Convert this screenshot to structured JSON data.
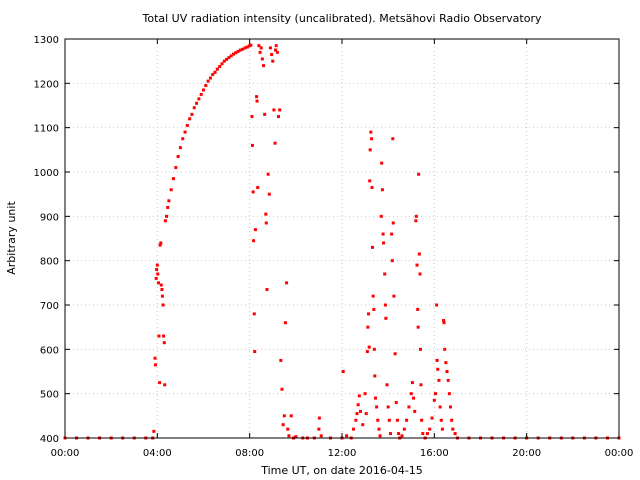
{
  "chart_data": {
    "type": "scatter",
    "title": "Total UV radiation intensity (uncalibrated). Metsähovi Radio Observatory",
    "xlabel": "Time UT, on date 2016-04-15",
    "ylabel": "Arbitrary unit",
    "xlim": [
      0,
      24
    ],
    "ylim": [
      400,
      1300
    ],
    "x_ticks": [
      0,
      4,
      8,
      12,
      16,
      20,
      24
    ],
    "x_tick_labels": [
      "00:00",
      "04:00",
      "08:00",
      "12:00",
      "16:00",
      "20:00",
      "00:00"
    ],
    "y_ticks": [
      400,
      500,
      600,
      700,
      800,
      900,
      1000,
      1100,
      1200,
      1300
    ],
    "y_tick_labels": [
      "400",
      "500",
      "600",
      "700",
      "800",
      "900",
      "1000",
      "1100",
      "1200",
      "1300"
    ],
    "grid": true,
    "legend": "none",
    "marker_color": "#ff0000",
    "x_unit": "hours UT",
    "series": [
      {
        "values_note": "",
        "points": [
          [
            0.0,
            400
          ],
          [
            0.5,
            400
          ],
          [
            1.0,
            400
          ],
          [
            1.5,
            400
          ],
          [
            2.0,
            400
          ],
          [
            2.5,
            400
          ],
          [
            3.0,
            400
          ],
          [
            3.5,
            400
          ],
          [
            3.8,
            400
          ],
          [
            3.85,
            415
          ],
          [
            3.9,
            580
          ],
          [
            3.92,
            565
          ],
          [
            3.95,
            760
          ],
          [
            3.97,
            780
          ],
          [
            4.0,
            790
          ],
          [
            4.02,
            770
          ],
          [
            4.05,
            750
          ],
          [
            4.07,
            630
          ],
          [
            4.1,
            525
          ],
          [
            4.12,
            835
          ],
          [
            4.15,
            840
          ],
          [
            4.17,
            745
          ],
          [
            4.2,
            735
          ],
          [
            4.22,
            720
          ],
          [
            4.25,
            700
          ],
          [
            4.27,
            630
          ],
          [
            4.3,
            615
          ],
          [
            4.32,
            520
          ],
          [
            4.35,
            890
          ],
          [
            4.4,
            900
          ],
          [
            4.45,
            920
          ],
          [
            4.5,
            935
          ],
          [
            4.6,
            960
          ],
          [
            4.7,
            985
          ],
          [
            4.8,
            1010
          ],
          [
            4.9,
            1035
          ],
          [
            5.0,
            1055
          ],
          [
            5.1,
            1075
          ],
          [
            5.2,
            1090
          ],
          [
            5.3,
            1105
          ],
          [
            5.4,
            1120
          ],
          [
            5.5,
            1130
          ],
          [
            5.6,
            1145
          ],
          [
            5.7,
            1155
          ],
          [
            5.8,
            1165
          ],
          [
            5.9,
            1175
          ],
          [
            6.0,
            1185
          ],
          [
            6.1,
            1195
          ],
          [
            6.2,
            1205
          ],
          [
            6.3,
            1212
          ],
          [
            6.4,
            1220
          ],
          [
            6.5,
            1225
          ],
          [
            6.6,
            1232
          ],
          [
            6.7,
            1238
          ],
          [
            6.8,
            1244
          ],
          [
            6.9,
            1250
          ],
          [
            7.0,
            1254
          ],
          [
            7.1,
            1258
          ],
          [
            7.2,
            1262
          ],
          [
            7.3,
            1266
          ],
          [
            7.4,
            1269
          ],
          [
            7.5,
            1272
          ],
          [
            7.6,
            1275
          ],
          [
            7.7,
            1277
          ],
          [
            7.8,
            1280
          ],
          [
            7.9,
            1282
          ],
          [
            8.0,
            1285
          ],
          [
            8.05,
            1286
          ],
          [
            8.1,
            1125
          ],
          [
            8.12,
            1060
          ],
          [
            8.15,
            955
          ],
          [
            8.17,
            845
          ],
          [
            8.2,
            680
          ],
          [
            8.22,
            595
          ],
          [
            8.25,
            870
          ],
          [
            8.3,
            1170
          ],
          [
            8.32,
            1160
          ],
          [
            8.35,
            965
          ],
          [
            8.4,
            1285
          ],
          [
            8.45,
            1270
          ],
          [
            8.5,
            1280
          ],
          [
            8.55,
            1255
          ],
          [
            8.6,
            1240
          ],
          [
            8.65,
            1130
          ],
          [
            8.7,
            905
          ],
          [
            8.72,
            885
          ],
          [
            8.75,
            735
          ],
          [
            8.8,
            995
          ],
          [
            8.85,
            950
          ],
          [
            8.9,
            1280
          ],
          [
            8.95,
            1265
          ],
          [
            9.0,
            1250
          ],
          [
            9.05,
            1140
          ],
          [
            9.1,
            1065
          ],
          [
            9.12,
            1275
          ],
          [
            9.15,
            1285
          ],
          [
            9.2,
            1270
          ],
          [
            9.25,
            1125
          ],
          [
            9.3,
            1140
          ],
          [
            9.35,
            575
          ],
          [
            9.4,
            510
          ],
          [
            9.45,
            430
          ],
          [
            9.5,
            450
          ],
          [
            9.55,
            660
          ],
          [
            9.6,
            750
          ],
          [
            9.65,
            420
          ],
          [
            9.7,
            405
          ],
          [
            9.8,
            450
          ],
          [
            9.9,
            400
          ],
          [
            10.0,
            403
          ],
          [
            10.3,
            400
          ],
          [
            10.5,
            400
          ],
          [
            10.8,
            400
          ],
          [
            11.0,
            420
          ],
          [
            11.02,
            445
          ],
          [
            11.1,
            405
          ],
          [
            11.5,
            400
          ],
          [
            12.0,
            400
          ],
          [
            12.05,
            550
          ],
          [
            12.2,
            405
          ],
          [
            12.4,
            400
          ],
          [
            12.5,
            420
          ],
          [
            12.6,
            440
          ],
          [
            12.65,
            455
          ],
          [
            12.7,
            475
          ],
          [
            12.75,
            495
          ],
          [
            12.8,
            460
          ],
          [
            12.9,
            430
          ],
          [
            13.0,
            500
          ],
          [
            13.05,
            455
          ],
          [
            13.1,
            595
          ],
          [
            13.12,
            650
          ],
          [
            13.15,
            680
          ],
          [
            13.18,
            605
          ],
          [
            13.2,
            980
          ],
          [
            13.22,
            1050
          ],
          [
            13.25,
            1090
          ],
          [
            13.28,
            1075
          ],
          [
            13.3,
            965
          ],
          [
            13.32,
            830
          ],
          [
            13.35,
            720
          ],
          [
            13.38,
            690
          ],
          [
            13.4,
            600
          ],
          [
            13.42,
            540
          ],
          [
            13.45,
            490
          ],
          [
            13.5,
            470
          ],
          [
            13.55,
            440
          ],
          [
            13.6,
            420
          ],
          [
            13.65,
            405
          ],
          [
            13.7,
            900
          ],
          [
            13.72,
            1020
          ],
          [
            13.75,
            960
          ],
          [
            13.78,
            860
          ],
          [
            13.8,
            840
          ],
          [
            13.85,
            770
          ],
          [
            13.88,
            700
          ],
          [
            13.9,
            670
          ],
          [
            13.95,
            520
          ],
          [
            14.0,
            470
          ],
          [
            14.05,
            440
          ],
          [
            14.1,
            410
          ],
          [
            14.15,
            860
          ],
          [
            14.18,
            800
          ],
          [
            14.2,
            1075
          ],
          [
            14.22,
            885
          ],
          [
            14.25,
            720
          ],
          [
            14.3,
            590
          ],
          [
            14.35,
            480
          ],
          [
            14.4,
            440
          ],
          [
            14.45,
            410
          ],
          [
            14.5,
            400
          ],
          [
            14.6,
            405
          ],
          [
            14.7,
            420
          ],
          [
            14.8,
            440
          ],
          [
            14.9,
            470
          ],
          [
            15.0,
            500
          ],
          [
            15.05,
            525
          ],
          [
            15.1,
            490
          ],
          [
            15.15,
            460
          ],
          [
            15.2,
            890
          ],
          [
            15.22,
            900
          ],
          [
            15.25,
            790
          ],
          [
            15.28,
            690
          ],
          [
            15.3,
            650
          ],
          [
            15.32,
            995
          ],
          [
            15.35,
            815
          ],
          [
            15.38,
            770
          ],
          [
            15.4,
            600
          ],
          [
            15.42,
            520
          ],
          [
            15.45,
            440
          ],
          [
            15.5,
            410
          ],
          [
            15.6,
            400
          ],
          [
            15.7,
            410
          ],
          [
            15.8,
            420
          ],
          [
            15.9,
            445
          ],
          [
            16.0,
            485
          ],
          [
            16.05,
            500
          ],
          [
            16.1,
            700
          ],
          [
            16.12,
            575
          ],
          [
            16.15,
            555
          ],
          [
            16.2,
            530
          ],
          [
            16.25,
            470
          ],
          [
            16.3,
            440
          ],
          [
            16.35,
            420
          ],
          [
            16.4,
            665
          ],
          [
            16.42,
            660
          ],
          [
            16.45,
            600
          ],
          [
            16.5,
            570
          ],
          [
            16.55,
            550
          ],
          [
            16.6,
            530
          ],
          [
            16.65,
            500
          ],
          [
            16.7,
            470
          ],
          [
            16.75,
            440
          ],
          [
            16.8,
            420
          ],
          [
            16.9,
            410
          ],
          [
            17.0,
            400
          ],
          [
            17.5,
            400
          ],
          [
            18.0,
            400
          ],
          [
            18.5,
            400
          ],
          [
            19.0,
            400
          ],
          [
            19.5,
            400
          ],
          [
            20.0,
            400
          ],
          [
            20.5,
            400
          ],
          [
            21.0,
            400
          ],
          [
            21.5,
            400
          ],
          [
            22.0,
            400
          ],
          [
            22.5,
            400
          ],
          [
            23.0,
            400
          ],
          [
            23.5,
            400
          ],
          [
            24.0,
            400
          ]
        ]
      }
    ]
  }
}
